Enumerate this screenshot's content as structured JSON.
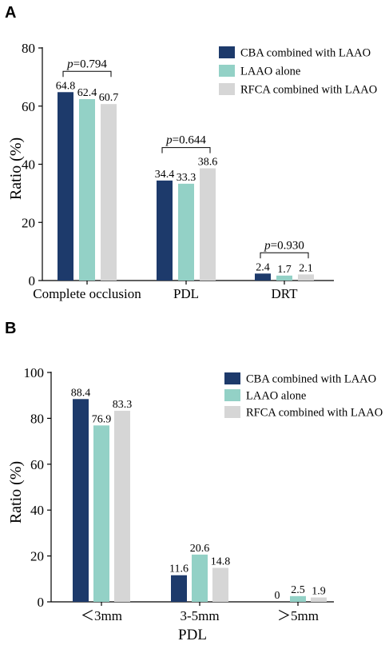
{
  "chart_data": [
    {
      "panel": "A",
      "type": "bar",
      "ylabel": "Ratio (%)",
      "xlabel": "",
      "ylim": [
        0,
        80
      ],
      "yticks": [
        0,
        20,
        40,
        60,
        80
      ],
      "categories": [
        "Complete occlusion",
        "PDL",
        "DRT"
      ],
      "series": [
        {
          "name": "CBA combined with LAAO",
          "color": "#1d3a6b",
          "values": [
            64.8,
            34.4,
            2.4
          ]
        },
        {
          "name": "LAAO alone",
          "color": "#93d1c6",
          "values": [
            62.4,
            33.3,
            1.7
          ]
        },
        {
          "name": "RFCA combined with LAAO",
          "color": "#d6d6d6",
          "values": [
            60.7,
            38.6,
            2.1
          ]
        }
      ],
      "value_labels": [
        [
          "64.8",
          "62.4",
          "60.7"
        ],
        [
          "34.4",
          "33.3",
          "38.6"
        ],
        [
          "2.4",
          "1.7",
          "2.1"
        ]
      ],
      "annotations": [
        {
          "p_symbol": "p",
          "text": "=0.794",
          "category": 0
        },
        {
          "p_symbol": "p",
          "text": "=0.644",
          "category": 1
        },
        {
          "p_symbol": "p",
          "text": "=0.930",
          "category": 2
        }
      ],
      "legend": "top-right",
      "grid": false
    },
    {
      "panel": "B",
      "type": "bar",
      "ylabel": "Ratio (%)",
      "xlabel": "PDL",
      "ylim": [
        0,
        100
      ],
      "yticks": [
        0,
        20,
        40,
        60,
        80,
        100
      ],
      "categories": [
        "＜3mm",
        "3-5mm",
        "＞5mm"
      ],
      "series": [
        {
          "name": "CBA combined with LAAO",
          "color": "#1d3a6b",
          "values": [
            88.4,
            11.6,
            0
          ]
        },
        {
          "name": "LAAO alone",
          "color": "#93d1c6",
          "values": [
            76.9,
            20.6,
            2.5
          ]
        },
        {
          "name": "RFCA combined with LAAO",
          "color": "#d6d6d6",
          "values": [
            83.3,
            14.8,
            1.9
          ]
        }
      ],
      "value_labels": [
        [
          "88.4",
          "76.9",
          "83.3"
        ],
        [
          "11.6",
          "20.6",
          "14.8"
        ],
        [
          "0",
          "2.5",
          "1.9"
        ]
      ],
      "legend": "top-right",
      "grid": false
    }
  ]
}
